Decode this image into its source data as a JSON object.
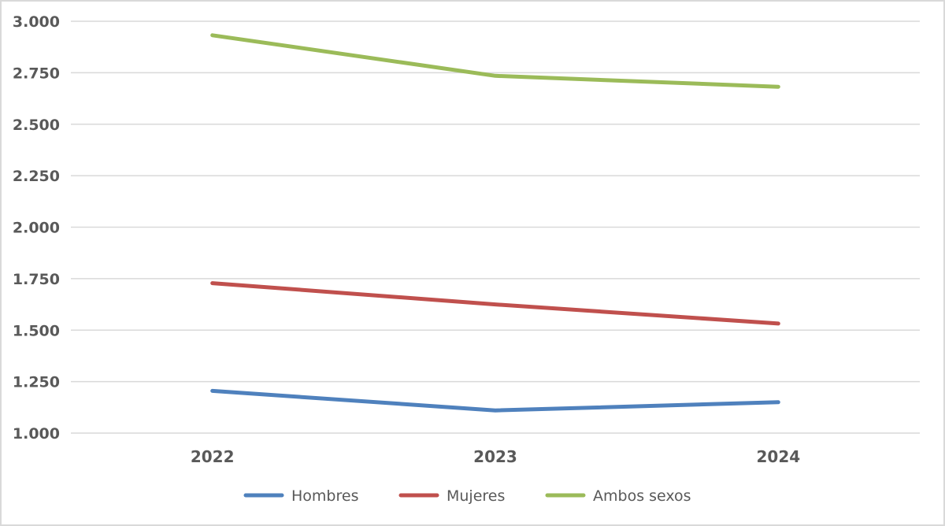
{
  "chart_data": {
    "type": "line",
    "title": "",
    "xlabel": "",
    "ylabel": "",
    "categories": [
      "2022",
      "2023",
      "2024"
    ],
    "ylim": [
      1000,
      3000
    ],
    "yticks": [
      1000,
      1250,
      1500,
      1750,
      2000,
      2250,
      2500,
      2750,
      3000
    ],
    "ytick_labels": [
      "1.000",
      "1.250",
      "1.500",
      "1.750",
      "2.000",
      "2.250",
      "2.500",
      "2.750",
      "3.000"
    ],
    "grid": true,
    "legend_position": "bottom",
    "series": [
      {
        "name": "Hombres",
        "color": "#4f81bd",
        "values": [
          1205,
          1110,
          1150
        ]
      },
      {
        "name": "Mujeres",
        "color": "#c0504d",
        "values": [
          1728,
          1625,
          1532
        ]
      },
      {
        "name": "Ambos sexos",
        "color": "#9bbb59",
        "values": [
          2932,
          2735,
          2682
        ]
      }
    ]
  }
}
